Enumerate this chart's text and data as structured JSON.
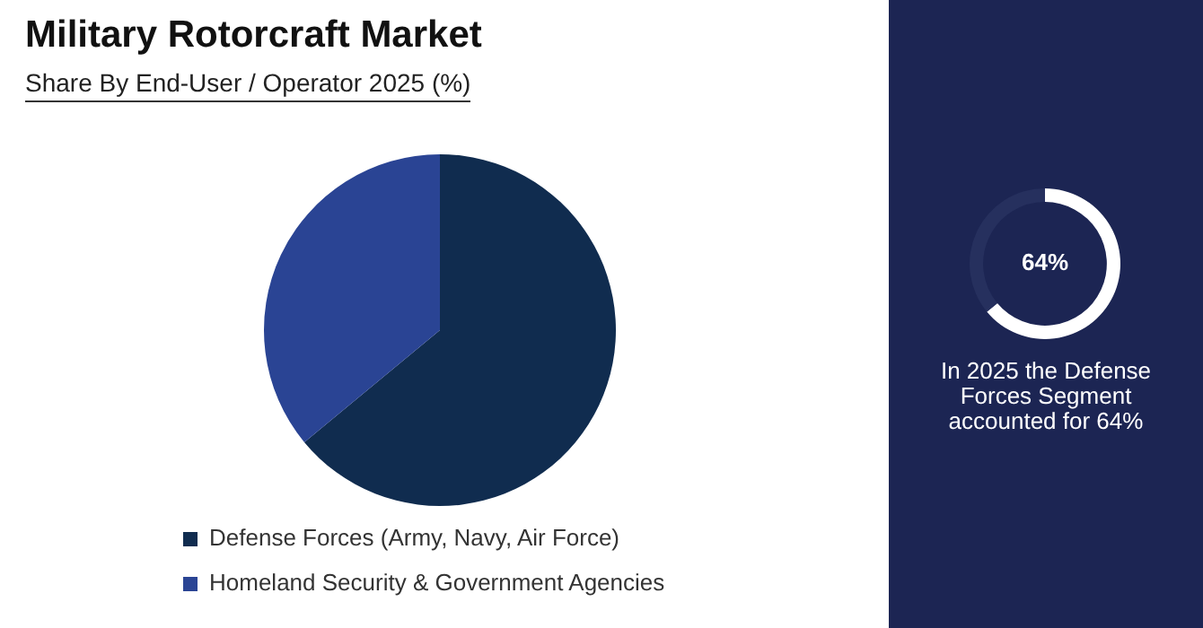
{
  "chart_data": [
    {
      "type": "pie",
      "title": "Military Rotorcraft Market",
      "subtitle": "Share By End-User / Operator 2025 (%)",
      "categories": [
        "Defense Forces (Army, Navy, Air Force)",
        "Homeland Security & Government Agencies"
      ],
      "values": [
        64,
        36
      ],
      "colors": [
        "#102c4f",
        "#2a4494"
      ],
      "legend": "bottom"
    },
    {
      "type": "donut",
      "categories": [
        null,
        null
      ],
      "values": [
        64,
        36
      ],
      "colors": [
        "#ffffff",
        "#26305e"
      ],
      "annotations": [
        "64%",
        "In 2025 the Defense Forces Segment accounted for 64%"
      ]
    }
  ]
}
